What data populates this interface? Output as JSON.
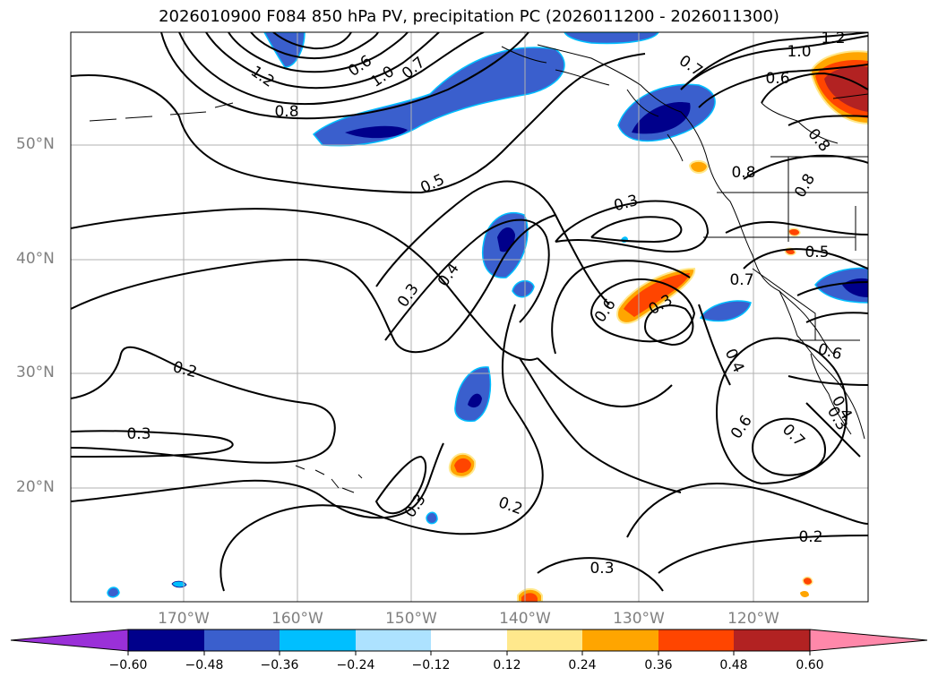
{
  "title": "2026010900 F084 850 hPa PV, precipitation PC (2026011200 - 2026011300)",
  "lat_labels": [
    "50°N",
    "40°N",
    "30°N",
    "20°N"
  ],
  "lon_labels": [
    "170°W",
    "160°W",
    "150°W",
    "140°W",
    "130°W",
    "120°W"
  ],
  "contour_labels": [
    "1.2",
    "1.0",
    "0.7",
    "0.6",
    "0.8",
    "1.2",
    "1.0",
    "0.7",
    "0.8",
    "0.5",
    "0.3",
    "0.4",
    "0.3",
    "0.2",
    "0.3",
    "0.3",
    "0.6",
    "0.3",
    "0.4",
    "0.6",
    "0.7",
    "0.2",
    "0.3",
    "0.2",
    "0.3",
    "0.5",
    "0.7",
    "0.6",
    "0.4",
    "0.8",
    "0.6",
    "0.8"
  ],
  "colorbar": {
    "ticks": [
      "−0.60",
      "−0.48",
      "−0.36",
      "−0.24",
      "−0.12",
      "0.12",
      "0.24",
      "0.36",
      "0.48",
      "0.60"
    ],
    "colors": [
      "#9a30d8",
      "#00008b",
      "#3a5fcd",
      "#00bfff",
      "#ade2ff",
      "#ffffff",
      "#ffe88c",
      "#ffa500",
      "#ff4500",
      "#b22222",
      "#ff88aa"
    ]
  }
}
